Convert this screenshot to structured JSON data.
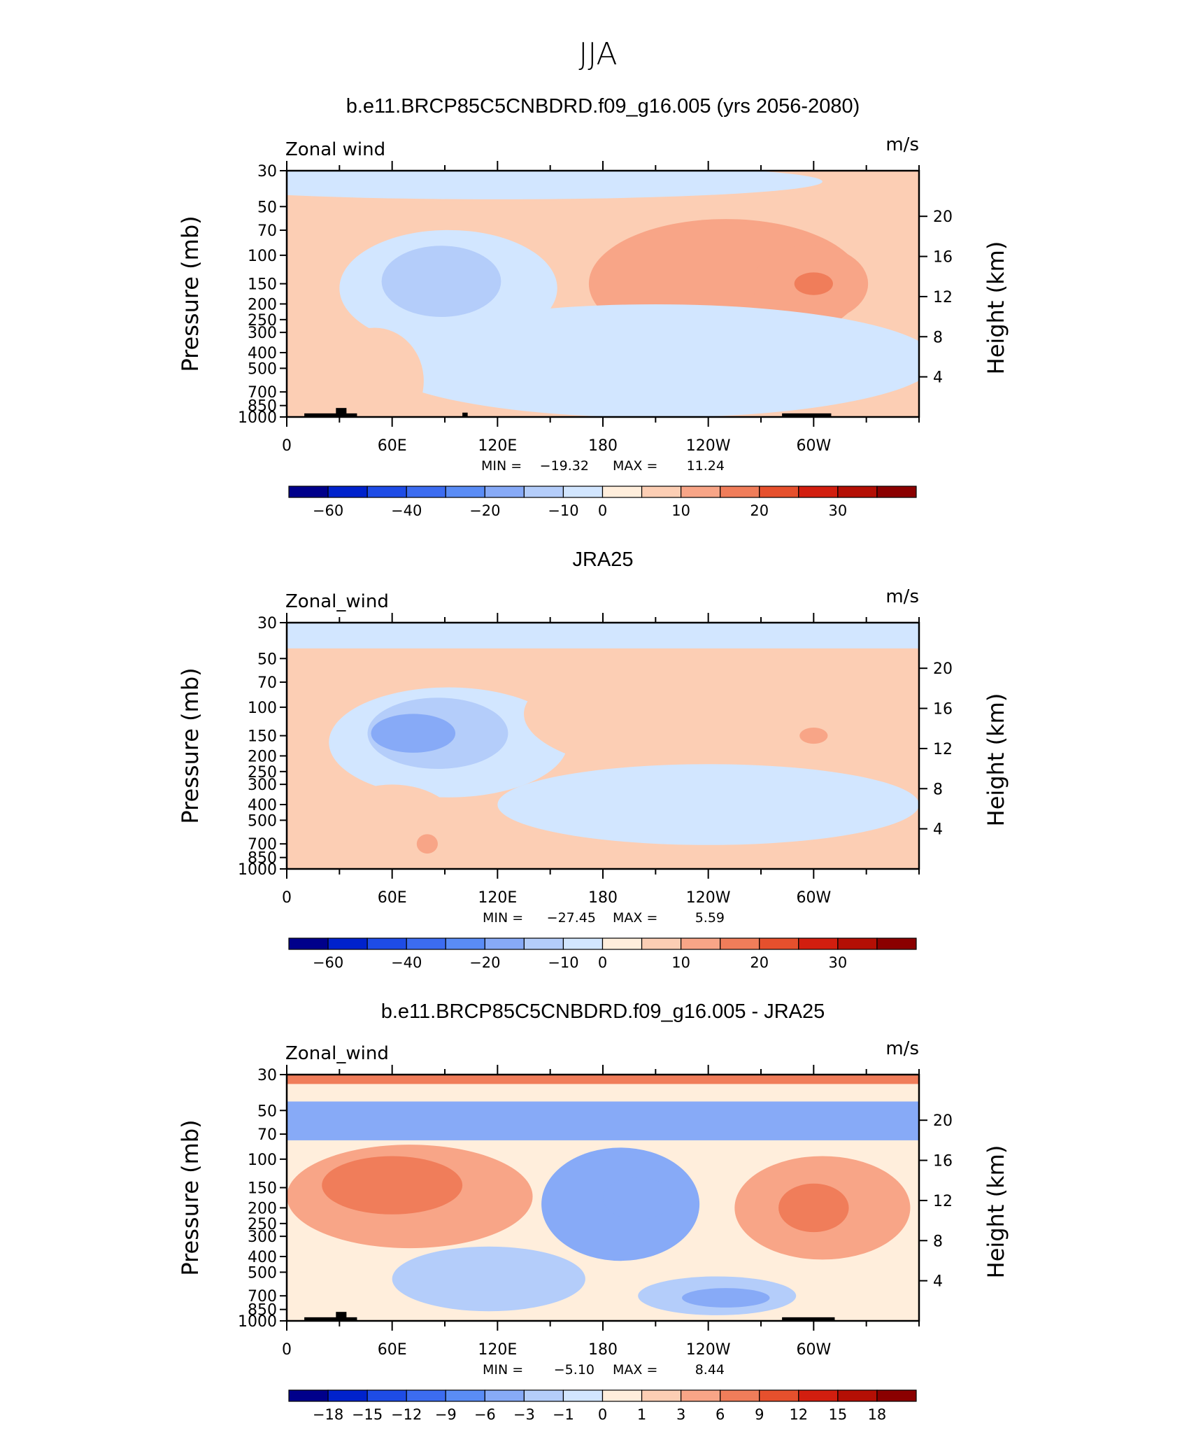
{
  "figure": {
    "season": "JJA"
  },
  "colors": {
    "main": [
      "#00008b",
      "#0022cc",
      "#1e4ce6",
      "#3c6cf0",
      "#5a8cf5",
      "#87aaf7",
      "#b4cdfa",
      "#d2e6ff",
      "#ffeedc",
      "#fcceb4",
      "#f8a587",
      "#f07d5a",
      "#e6502d",
      "#d21e0f",
      "#b40f05",
      "#8b0000"
    ],
    "diff": [
      "#00008b",
      "#0022cc",
      "#1e4ce6",
      "#3c6cf0",
      "#5a8cf5",
      "#87aaf7",
      "#b4cdfa",
      "#d2e6ff",
      "#ffeedc",
      "#fcceb4",
      "#f8a587",
      "#f07d5a",
      "#e6502d",
      "#d21e0f",
      "#b40f05",
      "#8b0000"
    ],
    "topography": "#000000"
  },
  "chart_data": [
    {
      "type": "heatmap",
      "title": "b.e11.BRCP85C5CNBDRD.f09_g16.005 (yrs 2056-2080)",
      "left_label": "Zonal wind",
      "units": "m/s",
      "ylabel": "Pressure  (mb)",
      "ylabel_right": "Height  (km)",
      "x_ticks": [
        "0",
        "60E",
        "120E",
        "180",
        "120W",
        "60W"
      ],
      "y_ticks": [
        "30",
        "50",
        "70",
        "100",
        "150",
        "200",
        "250",
        "300",
        "400",
        "500",
        "700",
        "850",
        "1000"
      ],
      "height_ticks": [
        "20",
        "16",
        "12",
        "8",
        "4"
      ],
      "min_label": "MIN =",
      "min_value": "−19.32",
      "max_label": "MAX =",
      "max_value": "11.24",
      "colorbar_labels": [
        "−60",
        "−40",
        "−20",
        "−10",
        "0",
        "10",
        "20",
        "30"
      ],
      "xlim": [
        0,
        360
      ],
      "ylim_mb": [
        1000,
        30
      ],
      "features": [
        {
          "shape": "ellipse",
          "lon": 120,
          "p": 35,
          "dlon": 185,
          "dlogp": 0.11,
          "value": -8
        },
        {
          "shape": "ellipse",
          "lon": 92,
          "p": 160,
          "dlon": 62,
          "dlogp": 0.36,
          "value": -10
        },
        {
          "shape": "ellipse",
          "lon": 88,
          "p": 145,
          "dlon": 34,
          "dlogp": 0.22,
          "value": -18
        },
        {
          "shape": "ellipse",
          "lon": 250,
          "p": 150,
          "dlon": 78,
          "dlogp": 0.4,
          "value": 6
        },
        {
          "shape": "ellipse",
          "lon": 298,
          "p": 150,
          "dlon": 33,
          "dlogp": 0.24,
          "value": 9
        },
        {
          "shape": "ellipse",
          "lon": 300,
          "p": 150,
          "dlon": 11,
          "dlogp": 0.07,
          "value": 11
        },
        {
          "shape": "ellipse",
          "lon": 210,
          "p": 450,
          "dlon": 160,
          "dlogp": 0.35,
          "value": -6
        },
        {
          "shape": "ellipse",
          "lon": 50,
          "p": 600,
          "dlon": 28,
          "dlogp": 0.33,
          "value": 4
        },
        {
          "shape": "ellipse",
          "lon": 240,
          "p": 820,
          "dlon": 40,
          "dlogp": 0.07,
          "value": -10
        }
      ],
      "topography": [
        [
          10,
          40,
          950
        ],
        [
          28,
          34,
          880
        ],
        [
          100,
          103,
          940
        ],
        [
          282,
          310,
          950
        ]
      ]
    },
    {
      "type": "heatmap",
      "title": "JRA25",
      "left_label": "Zonal_wind",
      "units": "m/s",
      "ylabel": "Pressure  (mb)",
      "ylabel_right": "Height  (km)",
      "x_ticks": [
        "0",
        "60E",
        "120E",
        "180",
        "120W",
        "60W"
      ],
      "y_ticks": [
        "30",
        "50",
        "70",
        "100",
        "150",
        "200",
        "250",
        "300",
        "400",
        "500",
        "700",
        "850",
        "1000"
      ],
      "height_ticks": [
        "20",
        "16",
        "12",
        "8",
        "4"
      ],
      "min_label": "MIN =",
      "min_value": "−27.45",
      "max_label": "MAX =",
      "max_value": "5.59",
      "colorbar_labels": [
        "−60",
        "−40",
        "−20",
        "−10",
        "0",
        "10",
        "20",
        "30"
      ],
      "xlim": [
        0,
        360
      ],
      "ylim_mb": [
        1000,
        30
      ],
      "features": [
        {
          "shape": "band",
          "p": 36,
          "dlogp": 0.08,
          "value": -8
        },
        {
          "shape": "ellipse",
          "lon": 92,
          "p": 165,
          "dlon": 68,
          "dlogp": 0.34,
          "value": -10
        },
        {
          "shape": "ellipse",
          "lon": 86,
          "p": 145,
          "dlon": 40,
          "dlogp": 0.22,
          "value": -18
        },
        {
          "shape": "ellipse",
          "lon": 72,
          "p": 145,
          "dlon": 24,
          "dlogp": 0.12,
          "value": -25
        },
        {
          "shape": "ellipse",
          "lon": 235,
          "p": 110,
          "dlon": 100,
          "dlogp": 0.38,
          "value": 4
        },
        {
          "shape": "ellipse",
          "lon": 300,
          "p": 150,
          "dlon": 8,
          "dlogp": 0.05,
          "value": 6
        },
        {
          "shape": "ellipse",
          "lon": 240,
          "p": 400,
          "dlon": 120,
          "dlogp": 0.25,
          "value": -6
        },
        {
          "shape": "ellipse",
          "lon": 60,
          "p": 600,
          "dlon": 40,
          "dlogp": 0.3,
          "value": 4
        },
        {
          "shape": "ellipse",
          "lon": 80,
          "p": 700,
          "dlon": 6,
          "dlogp": 0.06,
          "value": 7
        }
      ],
      "topography": []
    },
    {
      "type": "heatmap",
      "title": "b.e11.BRCP85C5CNBDRD.f09_g16.005 - JRA25",
      "left_label": "Zonal_wind",
      "units": "m/s",
      "ylabel": "Pressure  (mb)",
      "ylabel_right": "Height  (km)",
      "x_ticks": [
        "0",
        "60E",
        "120E",
        "180",
        "120W",
        "60W"
      ],
      "y_ticks": [
        "30",
        "50",
        "70",
        "100",
        "150",
        "200",
        "250",
        "300",
        "400",
        "500",
        "700",
        "850",
        "1000"
      ],
      "height_ticks": [
        "20",
        "16",
        "12",
        "8",
        "4"
      ],
      "min_label": "MIN =",
      "min_value": "−5.10",
      "max_label": "MAX =",
      "max_value": "8.44",
      "colorbar_labels": [
        "−18",
        "−15",
        "−12",
        "−9",
        "−6",
        "−3",
        "−1",
        "0",
        "1",
        "3",
        "6",
        "9",
        "12",
        "15",
        "18"
      ],
      "xlim": [
        0,
        360
      ],
      "ylim_mb": [
        1000,
        30
      ],
      "features": [
        {
          "shape": "band",
          "p": 32,
          "dlogp": 0.03,
          "value": 7
        },
        {
          "shape": "band",
          "p": 58,
          "dlogp": 0.12,
          "value": -4
        },
        {
          "shape": "ellipse",
          "lon": 70,
          "p": 170,
          "dlon": 70,
          "dlogp": 0.32,
          "value": 4
        },
        {
          "shape": "ellipse",
          "lon": 60,
          "p": 145,
          "dlon": 40,
          "dlogp": 0.18,
          "value": 7
        },
        {
          "shape": "ellipse",
          "lon": 190,
          "p": 190,
          "dlon": 45,
          "dlogp": 0.35,
          "value": -4
        },
        {
          "shape": "ellipse",
          "lon": 200,
          "p": 175,
          "dlon": 20,
          "dlogp": 0.13,
          "value": -6
        },
        {
          "shape": "ellipse",
          "lon": 305,
          "p": 200,
          "dlon": 50,
          "dlogp": 0.32,
          "value": 4
        },
        {
          "shape": "ellipse",
          "lon": 300,
          "p": 200,
          "dlon": 20,
          "dlogp": 0.15,
          "value": 7
        },
        {
          "shape": "ellipse",
          "lon": 115,
          "p": 550,
          "dlon": 55,
          "dlogp": 0.2,
          "value": -2
        },
        {
          "shape": "ellipse",
          "lon": 245,
          "p": 700,
          "dlon": 45,
          "dlogp": 0.12,
          "value": -3
        },
        {
          "shape": "ellipse",
          "lon": 250,
          "p": 720,
          "dlon": 25,
          "dlogp": 0.06,
          "value": -5
        }
      ],
      "topography": [
        [
          10,
          40,
          950
        ],
        [
          28,
          34,
          880
        ],
        [
          282,
          312,
          950
        ]
      ]
    }
  ]
}
